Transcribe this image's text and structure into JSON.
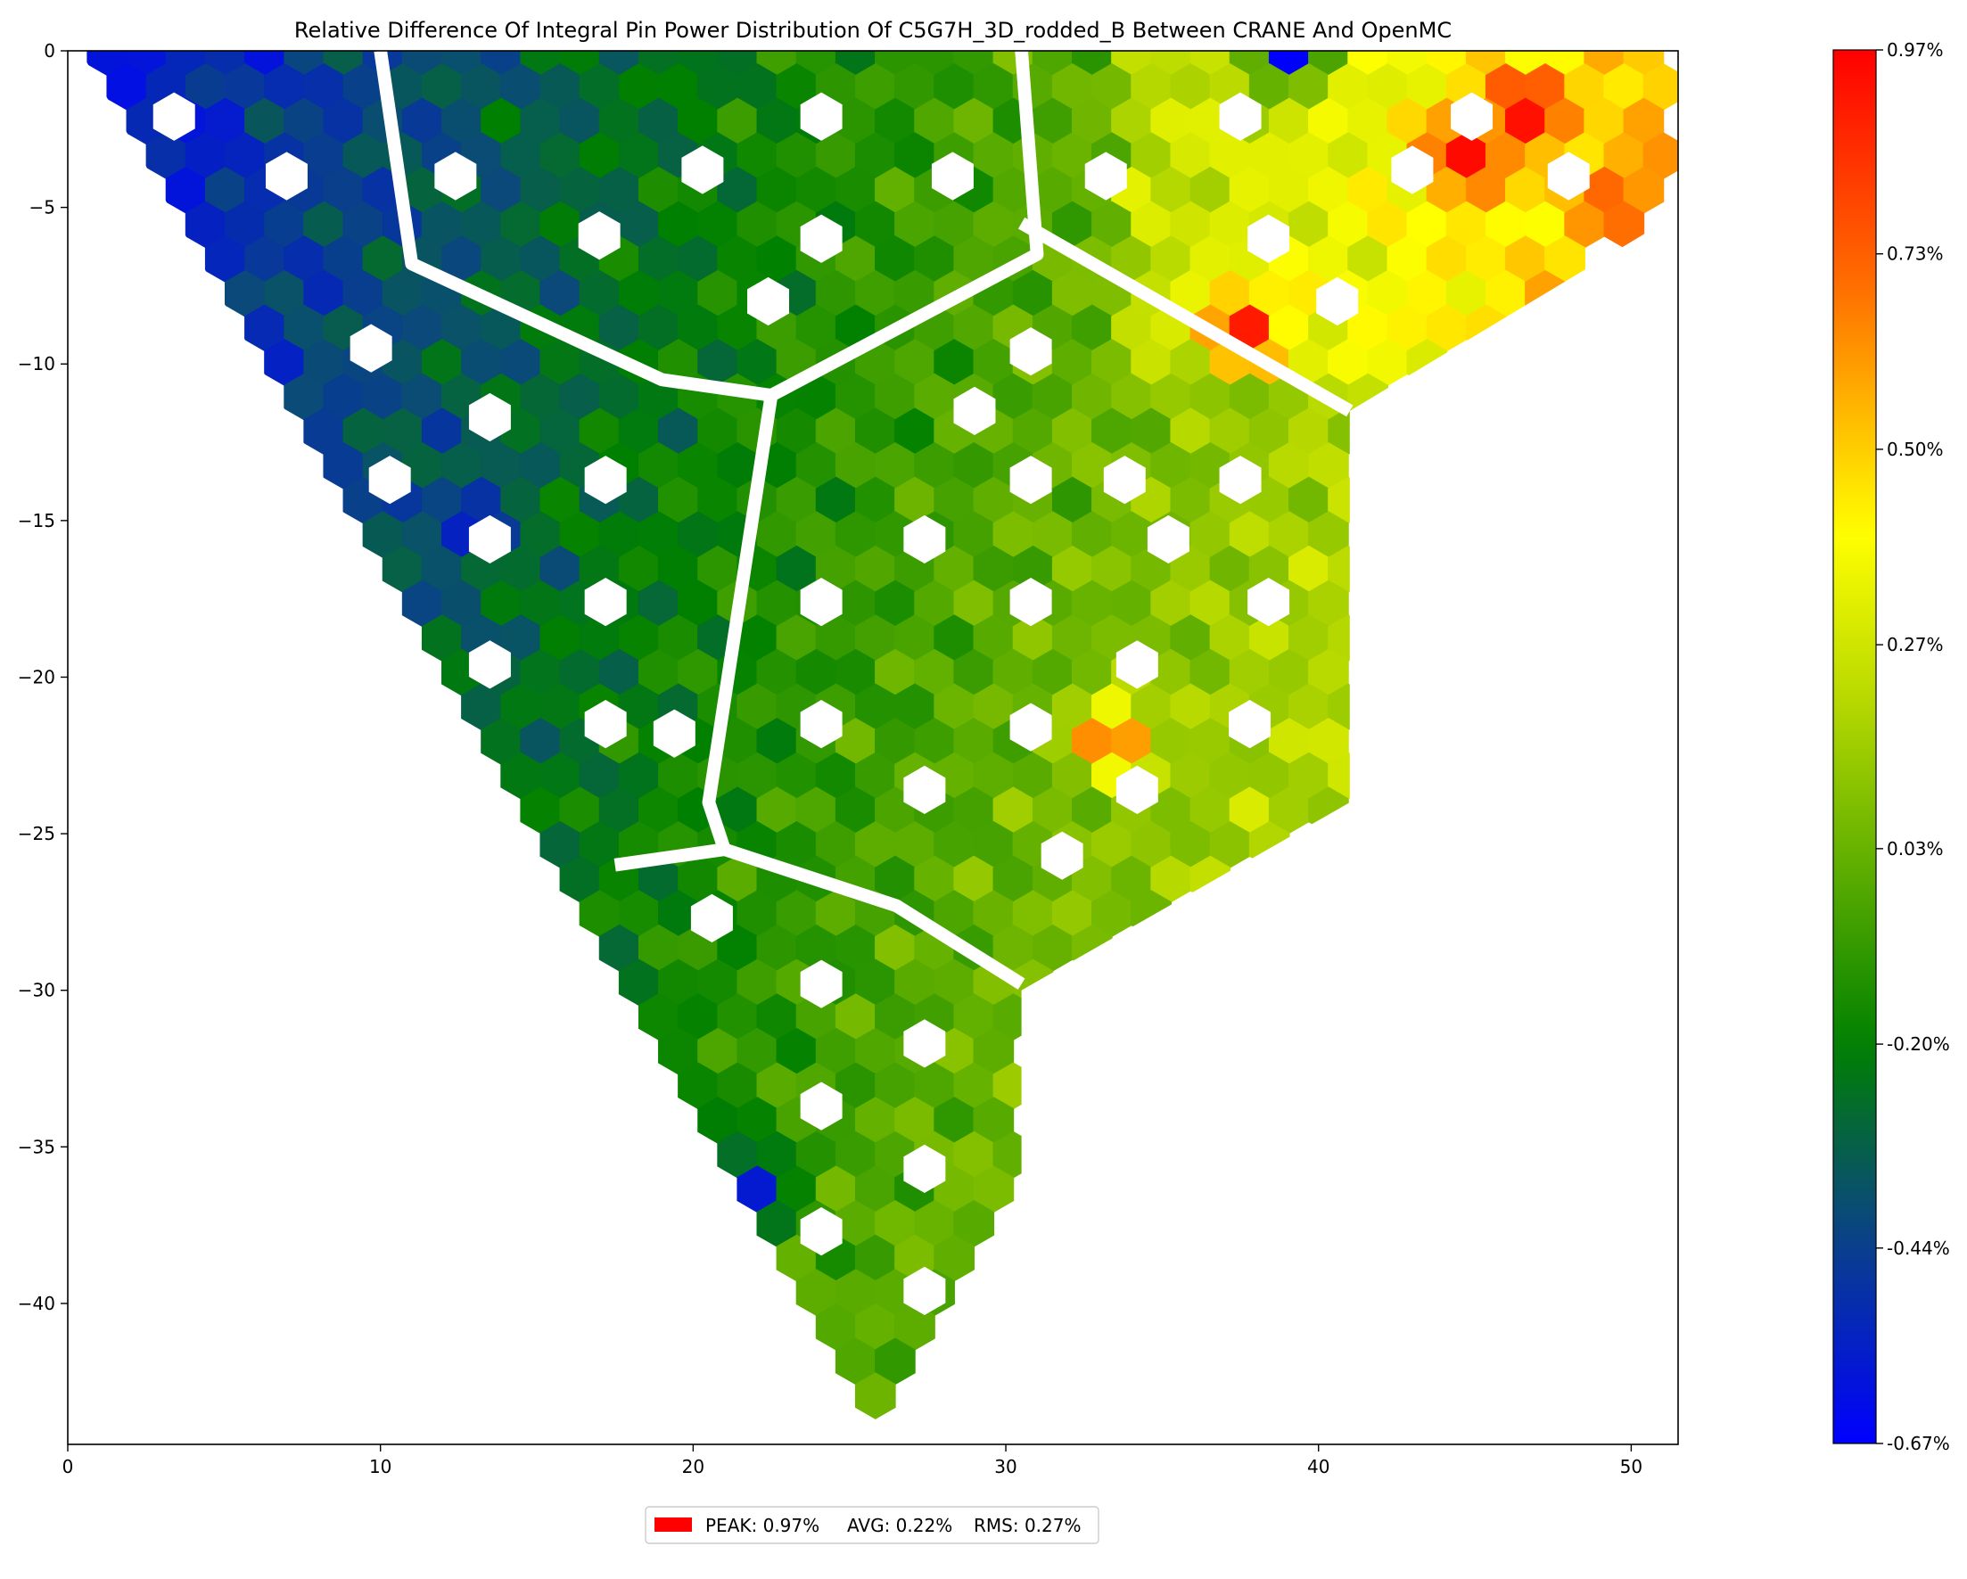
{
  "chart_data": {
    "type": "heatmap",
    "subtype": "hexagonal pin map",
    "title": "Relative Difference Of Integral Pin Power Distribution Of C5G7H_3D_rodded_B Between CRANE And OpenMC",
    "xlabel": "",
    "ylabel": "",
    "xlim": [
      0,
      51.5
    ],
    "ylim": [
      -44.5,
      0
    ],
    "x_ticks": [
      0,
      10,
      20,
      30,
      40,
      50
    ],
    "x_tick_labels": [
      "0",
      "10",
      "20",
      "30",
      "40",
      "50"
    ],
    "y_ticks": [
      0,
      -5,
      -10,
      -15,
      -20,
      -25,
      -30,
      -35,
      -40
    ],
    "y_tick_labels": [
      "0",
      "−5",
      "−10",
      "−15",
      "−20",
      "−25",
      "−30",
      "−35",
      "−40"
    ],
    "grid": false,
    "colorbar": {
      "min": -0.67,
      "max": 0.97,
      "unit": "%",
      "tick_values": [
        0.97,
        0.73,
        0.5,
        0.27,
        0.03,
        -0.2,
        -0.44,
        -0.67
      ],
      "tick_labels": [
        "0.97%",
        "0.73%",
        "0.50%",
        "0.27%",
        "0.03%",
        "-0.20%",
        "-0.44%",
        "-0.67%"
      ],
      "colormap_stops": [
        {
          "value": -0.67,
          "color": "#0000ff"
        },
        {
          "value": -0.4,
          "color": "#0a4a78"
        },
        {
          "value": -0.2,
          "color": "#008000"
        },
        {
          "value": 0.2,
          "color": "#b5d800"
        },
        {
          "value": 0.4,
          "color": "#ffff00"
        },
        {
          "value": 0.7,
          "color": "#ff6a00"
        },
        {
          "value": 0.97,
          "color": "#ff0000"
        }
      ]
    },
    "region": {
      "description_shape": "triangular core sector",
      "vertices": [
        [
          0.4,
          0
        ],
        [
          51.5,
          0
        ],
        [
          51.5,
          -5.2
        ],
        [
          41.0,
          -11.5
        ],
        [
          41.0,
          -24.0
        ],
        [
          30.5,
          -30.0
        ],
        [
          30.5,
          -36.5
        ],
        [
          25.8,
          -44.5
        ]
      ],
      "hex_pitch": 1.26,
      "row_pitch": 1.1
    },
    "empty_cells": [
      [
        3.4,
        -2.1
      ],
      [
        7,
        -4
      ],
      [
        12.4,
        -4
      ],
      [
        9.7,
        -9.5
      ],
      [
        17,
        -5.9
      ],
      [
        13.5,
        -11.7
      ],
      [
        10.3,
        -13.7
      ],
      [
        13.5,
        -15.6
      ],
      [
        17.2,
        -13.7
      ],
      [
        17.2,
        -17.6
      ],
      [
        13.5,
        -19.6
      ],
      [
        17.2,
        -21.5
      ],
      [
        20.3,
        -3.8
      ],
      [
        22.4,
        -8.0
      ],
      [
        19.4,
        -21.8
      ],
      [
        24.1,
        -2.1
      ],
      [
        28.3,
        -4.0
      ],
      [
        24.1,
        -6.0
      ],
      [
        29.0,
        -11.5
      ],
      [
        33.2,
        -4.0
      ],
      [
        37.5,
        -2.1
      ],
      [
        38.4,
        -6.0
      ],
      [
        33.8,
        -13.7
      ],
      [
        30.8,
        -9.6
      ],
      [
        43.0,
        -3.8
      ],
      [
        40.6,
        -8.0
      ],
      [
        44.9,
        -2.1
      ],
      [
        48.0,
        -4.0
      ],
      [
        37.5,
        -13.7
      ],
      [
        38.4,
        -17.6
      ],
      [
        35.2,
        -15.6
      ],
      [
        24.1,
        -17.6
      ],
      [
        24.1,
        -21.5
      ],
      [
        27.4,
        -23.6
      ],
      [
        30.8,
        -21.6
      ],
      [
        30.8,
        -17.6
      ],
      [
        34.2,
        -19.6
      ],
      [
        34.2,
        -23.6
      ],
      [
        37.8,
        -21.5
      ],
      [
        27.4,
        -15.6
      ],
      [
        30.8,
        -13.7
      ],
      [
        31.8,
        -25.7
      ],
      [
        20.6,
        -27.7
      ],
      [
        24.1,
        -29.8
      ],
      [
        27.4,
        -31.7
      ],
      [
        24.1,
        -33.7
      ],
      [
        27.4,
        -35.7
      ],
      [
        24.1,
        -37.7
      ],
      [
        27.4,
        -39.6
      ]
    ],
    "notable_values": [
      {
        "x": 46.6,
        "y": -1.9,
        "value": 0.97,
        "note": "peak"
      },
      {
        "x": 44.6,
        "y": -3.4,
        "value": 0.95
      },
      {
        "x": 37.6,
        "y": -8.8,
        "value": 0.92
      },
      {
        "x": 49.6,
        "y": -4.8,
        "value": 0.75
      },
      {
        "x": 33.4,
        "y": -22.0,
        "value": 0.78
      },
      {
        "x": 1.4,
        "y": -0.5,
        "value": -0.62
      },
      {
        "x": 3.6,
        "y": -4.6,
        "value": -0.6
      },
      {
        "x": 12.8,
        "y": -15.0,
        "value": -0.58
      },
      {
        "x": 21.8,
        "y": -36.3,
        "value": -0.6
      },
      {
        "x": 39.0,
        "y": 0,
        "value": -0.67,
        "note": "minimum"
      }
    ],
    "legend": {
      "placement": "bottom-center",
      "entries": [
        {
          "color": "#ff0000",
          "label": "PEAK: 0.97%"
        },
        {
          "label": "AVG: 0.22%"
        },
        {
          "label": "RMS: 0.27%"
        }
      ]
    },
    "stats": {
      "peak": 0.97,
      "avg": 0.22,
      "rms": 0.27,
      "unit": "%"
    }
  }
}
